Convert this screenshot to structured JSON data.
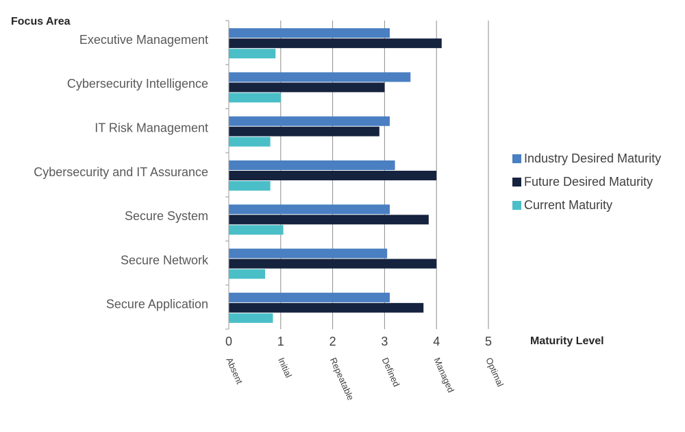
{
  "chart_data": {
    "type": "bar",
    "orientation": "horizontal",
    "y_axis_title": "Focus Area",
    "x_axis_title": "Maturity Level",
    "categories": [
      "Executive Management",
      "Cybersecurity Intelligence",
      "IT Risk Management",
      "Cybersecurity and IT Assurance",
      "Secure System",
      "Secure Network",
      "Secure Application"
    ],
    "series": [
      {
        "name": "Industry Desired Maturity",
        "color": "#4a7fc1",
        "values": [
          3.1,
          3.5,
          3.1,
          3.2,
          3.1,
          3.05,
          3.1
        ]
      },
      {
        "name": "Future Desired Maturity",
        "color": "#16233f",
        "values": [
          4.1,
          3.0,
          2.9,
          4.0,
          3.85,
          4.0,
          3.75
        ]
      },
      {
        "name": "Current Maturity",
        "color": "#4bbfc8",
        "values": [
          0.9,
          1.0,
          0.8,
          0.8,
          1.05,
          0.7,
          0.85
        ]
      }
    ],
    "xlim": [
      0,
      5
    ],
    "x_ticks": [
      "0",
      "1",
      "2",
      "3",
      "4",
      "5"
    ],
    "level_labels": [
      "Absent",
      "Initial",
      "Repeatable",
      "Defined",
      "Managed",
      "Optimal"
    ],
    "grid": "vertical major lines",
    "legend_position": "right"
  }
}
